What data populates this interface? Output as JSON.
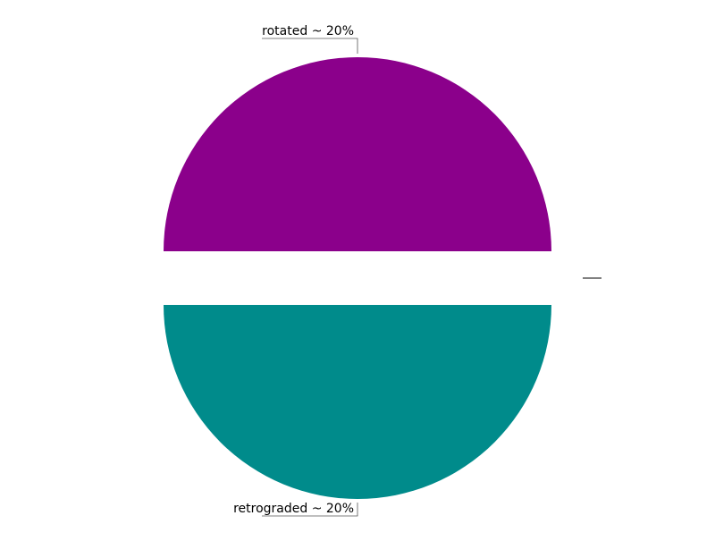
{
  "chart_data": {
    "type": "pie",
    "title": "",
    "slices": [
      {
        "label": "rotated ~ 20%",
        "value": 20,
        "color": "#8B008B"
      },
      {
        "label": "retrograded ~ 20%",
        "value": 20,
        "color": "#008B8B"
      }
    ],
    "legend": "none"
  }
}
